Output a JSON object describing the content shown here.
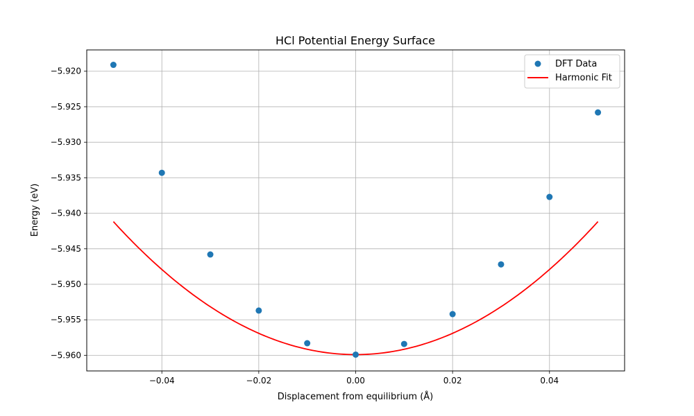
{
  "chart_data": {
    "type": "scatter",
    "title": "HCl Potential Energy Surface",
    "xlabel": "Displacement from equilibrium (Å)",
    "ylabel": "Energy (eV)",
    "xlim": [
      -0.0555,
      0.0555
    ],
    "ylim": [
      -5.9622,
      -5.917
    ],
    "xticks": [
      -0.04,
      -0.02,
      0.0,
      0.02,
      0.04
    ],
    "xtick_labels": [
      "−0.04",
      "−0.02",
      "0.00",
      "0.02",
      "0.04"
    ],
    "yticks": [
      -5.96,
      -5.955,
      -5.95,
      -5.945,
      -5.94,
      -5.935,
      -5.93,
      -5.925,
      -5.92
    ],
    "ytick_labels": [
      "−5.960",
      "−5.955",
      "−5.950",
      "−5.945",
      "−5.940",
      "−5.935",
      "−5.930",
      "−5.925",
      "−5.920"
    ],
    "grid": true,
    "legend_position": "top-right",
    "series": [
      {
        "name": "DFT Data",
        "kind": "scatter",
        "color": "#1f77b4",
        "x": [
          -0.05,
          -0.04,
          -0.03,
          -0.02,
          -0.01,
          0.0,
          0.01,
          0.02,
          0.03,
          0.04,
          0.05
        ],
        "y": [
          -5.9191,
          -5.9343,
          -5.9458,
          -5.9537,
          -5.9583,
          -5.9599,
          -5.9584,
          -5.9542,
          -5.9472,
          -5.9377,
          -5.9258
        ]
      },
      {
        "name": "Harmonic Fit",
        "kind": "line",
        "color": "#ff0000",
        "model": "quadratic",
        "x0": 0.0,
        "e0": -5.9599,
        "k": 14.98,
        "x_range": [
          -0.05,
          0.05
        ]
      }
    ]
  }
}
